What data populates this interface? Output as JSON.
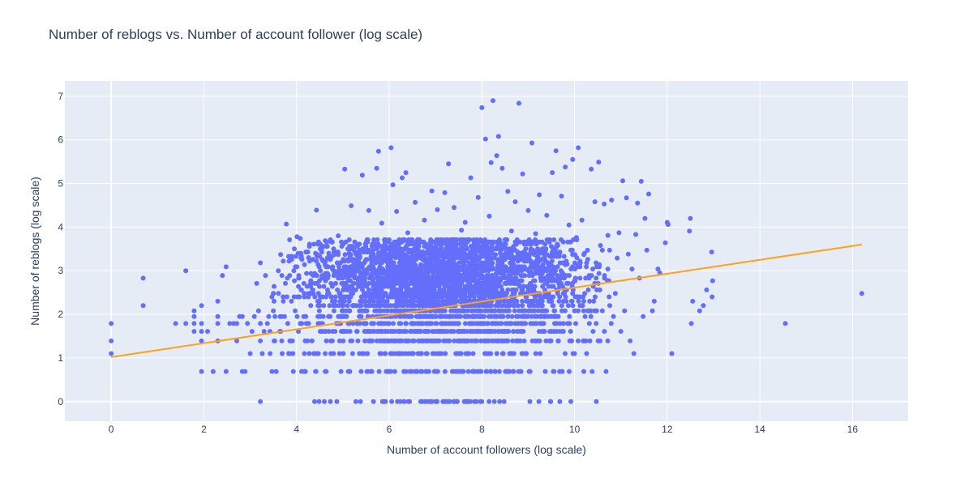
{
  "chart_data": {
    "type": "scatter",
    "title": "Number of reblogs vs. Number of account follower (log scale)",
    "xlabel": "Number of account followers (log scale)",
    "ylabel": "Number of reblogs (log scale)",
    "xlim": [
      -1,
      17.2
    ],
    "ylim": [
      -0.45,
      7.35
    ],
    "xticks": [
      0,
      2,
      4,
      6,
      8,
      10,
      12,
      14,
      16
    ],
    "yticks": [
      0,
      1,
      2,
      3,
      4,
      5,
      6,
      7
    ],
    "grid": true,
    "legend": "none",
    "colors": {
      "points": "#636efa",
      "trendline": "#ffa11b",
      "plot_bg": "#e5ecf6",
      "grid": "#ffffff",
      "text": "#2a3f5f"
    },
    "series": [
      {
        "type": "scatter",
        "points": [
          [
            0,
            1.1
          ],
          [
            0,
            1.39
          ],
          [
            0,
            1.79
          ],
          [
            0.69,
            2.2
          ],
          [
            0.69,
            2.83
          ],
          [
            1.39,
            1.79
          ],
          [
            1.61,
            1.79
          ],
          [
            1.61,
            3.0
          ],
          [
            1.79,
            1.61
          ],
          [
            1.79,
            1.79
          ],
          [
            1.79,
            1.95
          ],
          [
            1.79,
            2.08
          ],
          [
            1.95,
            0.69
          ],
          [
            1.95,
            1.39
          ],
          [
            1.95,
            1.61
          ],
          [
            1.95,
            1.79
          ],
          [
            1.95,
            2.2
          ],
          [
            2.08,
            1.61
          ],
          [
            2.2,
            0.69
          ],
          [
            2.3,
            1.39
          ],
          [
            2.3,
            1.79
          ],
          [
            2.3,
            1.95
          ],
          [
            2.3,
            2.3
          ],
          [
            2.4,
            2.89
          ],
          [
            2.48,
            0.69
          ],
          [
            2.48,
            3.09
          ],
          [
            2.56,
            1.79
          ],
          [
            2.64,
            1.79
          ],
          [
            2.71,
            1.39
          ],
          [
            2.71,
            1.79
          ],
          [
            2.77,
            1.95
          ],
          [
            2.83,
            1.95
          ],
          [
            2.83,
            0.69
          ],
          [
            2.89,
            0.69
          ],
          [
            2.94,
            1.79
          ],
          [
            3.0,
            1.1
          ],
          [
            3.04,
            1.61
          ],
          [
            3.09,
            1.95
          ],
          [
            3.14,
            2.71
          ],
          [
            3.18,
            2.08
          ],
          [
            3.22,
            0
          ],
          [
            3.22,
            1.39
          ],
          [
            3.22,
            1.79
          ],
          [
            3.22,
            3.18
          ],
          [
            3.26,
            1.1
          ],
          [
            3.3,
            1.61
          ],
          [
            3.33,
            2.89
          ],
          [
            3.37,
            1.79
          ],
          [
            3.4,
            1.95
          ],
          [
            3.43,
            1.1
          ],
          [
            3.47,
            0.69
          ],
          [
            3.5,
            2.08
          ],
          [
            3.53,
            1.39
          ],
          [
            3.56,
            0.69
          ],
          [
            3.61,
            2.48
          ],
          [
            3.64,
            1.61
          ],
          [
            3.69,
            1.1
          ],
          [
            3.71,
            2.4
          ],
          [
            3.74,
            1.95
          ],
          [
            3.76,
            2.71
          ],
          [
            3.78,
            4.07
          ],
          [
            3.81,
            1.79
          ],
          [
            3.83,
            3.33
          ],
          [
            3.85,
            1.1
          ],
          [
            3.89,
            2.3
          ],
          [
            3.91,
            1.39
          ],
          [
            3.93,
            0.69
          ],
          [
            3.97,
            2.08
          ],
          [
            4.01,
            3.78
          ],
          [
            4.04,
            1.61
          ],
          [
            4.08,
            3.74
          ],
          [
            4.11,
            0.69
          ],
          [
            4.17,
            1.1
          ],
          [
            4.2,
            1.95
          ],
          [
            4.23,
            2.64
          ],
          [
            4.26,
            1.79
          ],
          [
            4.3,
            2.48
          ],
          [
            4.33,
            1.39
          ],
          [
            4.36,
            2.89
          ],
          [
            4.39,
            0
          ],
          [
            4.41,
            0.69
          ],
          [
            4.43,
            4.39
          ],
          [
            4.47,
            1.1
          ],
          [
            4.5,
            2.2
          ],
          [
            4.53,
            3.5
          ],
          [
            4.56,
            1.79
          ],
          [
            4.6,
            0
          ],
          [
            4.62,
            3.69
          ],
          [
            4.64,
            0.69
          ],
          [
            4.67,
            2.56
          ],
          [
            4.7,
            1.61
          ],
          [
            4.73,
            0
          ],
          [
            4.76,
            3.33
          ],
          [
            4.8,
            1.1
          ],
          [
            4.83,
            2.3
          ],
          [
            4.87,
            0
          ],
          [
            4.9,
            3.8
          ],
          [
            4.93,
            1.39
          ],
          [
            4.96,
            0.69
          ],
          [
            5.0,
            2.08
          ],
          [
            5.04,
            5.33
          ],
          [
            5.08,
            1.95
          ],
          [
            5.11,
            3.26
          ],
          [
            5.15,
            0.69
          ],
          [
            5.18,
            4.49
          ],
          [
            5.21,
            1.1
          ],
          [
            5.25,
            3.04
          ],
          [
            5.28,
            0
          ],
          [
            5.31,
            1.61
          ],
          [
            5.35,
            2.64
          ],
          [
            5.38,
            0
          ],
          [
            5.42,
            5.19
          ],
          [
            5.45,
            1.79
          ],
          [
            5.49,
            2.94
          ],
          [
            5.52,
            0.69
          ],
          [
            5.56,
            4.38
          ],
          [
            5.59,
            1.39
          ],
          [
            5.63,
            3.56
          ],
          [
            5.66,
            0
          ],
          [
            5.7,
            2.2
          ],
          [
            5.73,
            5.35
          ],
          [
            5.77,
            5.74
          ],
          [
            5.8,
            1.1
          ],
          [
            5.84,
            4.09
          ],
          [
            5.88,
            2.83
          ],
          [
            5.92,
            0
          ],
          [
            5.96,
            3.66
          ],
          [
            6.0,
            1.79
          ],
          [
            6.04,
            5.82
          ],
          [
            6.08,
            4.97
          ],
          [
            6.12,
            0.69
          ],
          [
            6.16,
            4.36
          ],
          [
            6.2,
            2.4
          ],
          [
            6.24,
            0
          ],
          [
            6.28,
            5.13
          ],
          [
            6.32,
            1.95
          ],
          [
            6.36,
            5.25
          ],
          [
            6.4,
            3.87
          ],
          [
            6.44,
            0
          ],
          [
            6.48,
            2.77
          ],
          [
            6.52,
            1.1
          ],
          [
            6.56,
            4.57
          ],
          [
            6.6,
            0.69
          ],
          [
            6.64,
            3.43
          ],
          [
            6.68,
            0
          ],
          [
            6.72,
            2.08
          ],
          [
            6.76,
            4.16
          ],
          [
            6.8,
            1.61
          ],
          [
            6.84,
            3.0
          ],
          [
            6.88,
            0
          ],
          [
            6.92,
            4.83
          ],
          [
            6.96,
            2.56
          ],
          [
            7.0,
            0.69
          ],
          [
            7.04,
            4.4
          ],
          [
            7.08,
            1.39
          ],
          [
            7.12,
            3.71
          ],
          [
            7.16,
            0
          ],
          [
            7.2,
            4.79
          ],
          [
            7.24,
            2.2
          ],
          [
            7.28,
            5.45
          ],
          [
            7.32,
            1.79
          ],
          [
            7.36,
            3.22
          ],
          [
            7.4,
            4.45
          ],
          [
            7.44,
            0
          ],
          [
            7.48,
            2.89
          ],
          [
            7.52,
            1.1
          ],
          [
            7.56,
            3.93
          ],
          [
            7.6,
            0.69
          ],
          [
            7.64,
            4.11
          ],
          [
            7.68,
            0
          ],
          [
            7.72,
            2.64
          ],
          [
            7.76,
            5.13
          ],
          [
            7.8,
            1.95
          ],
          [
            7.84,
            3.56
          ],
          [
            7.88,
            0
          ],
          [
            7.92,
            4.68
          ],
          [
            7.96,
            2.3
          ],
          [
            8.0,
            6.74
          ],
          [
            8.04,
            3.17
          ],
          [
            8.08,
            6.02
          ],
          [
            8.12,
            1.61
          ],
          [
            8.16,
            4.25
          ],
          [
            8.2,
            5.48
          ],
          [
            8.24,
            6.9
          ],
          [
            8.28,
            0.69
          ],
          [
            8.32,
            5.64
          ],
          [
            8.36,
            6.08
          ],
          [
            8.4,
            3.64
          ],
          [
            8.44,
            5.35
          ],
          [
            8.48,
            0
          ],
          [
            8.52,
            2.48
          ],
          [
            8.56,
            4.82
          ],
          [
            8.6,
            1.1
          ],
          [
            8.64,
            3.91
          ],
          [
            8.68,
            0.69
          ],
          [
            8.72,
            4.58
          ],
          [
            8.76,
            2.77
          ],
          [
            8.8,
            6.84
          ],
          [
            8.84,
            1.79
          ],
          [
            8.88,
            5.22
          ],
          [
            8.92,
            3.3
          ],
          [
            8.96,
            1.1
          ],
          [
            9.0,
            4.38
          ],
          [
            9.04,
            0.69
          ],
          [
            9.08,
            5.93
          ],
          [
            9.12,
            2.56
          ],
          [
            9.16,
            3.85
          ],
          [
            9.2,
            1.39
          ],
          [
            9.24,
            4.74
          ],
          [
            9.28,
            2.08
          ],
          [
            9.32,
            3.4
          ],
          [
            9.36,
            1.95
          ],
          [
            9.4,
            4.27
          ],
          [
            9.44,
            2.89
          ],
          [
            9.48,
            0
          ],
          [
            9.52,
            5.25
          ],
          [
            9.56,
            0.69
          ],
          [
            9.6,
            5.75
          ],
          [
            9.64,
            3.58
          ],
          [
            9.68,
            1.61
          ],
          [
            9.72,
            4.71
          ],
          [
            9.76,
            2.3
          ],
          [
            9.8,
            5.38
          ],
          [
            9.84,
            3.15
          ],
          [
            9.88,
            4.05
          ],
          [
            9.92,
            0
          ],
          [
            9.96,
            5.55
          ],
          [
            10.0,
            1.1
          ],
          [
            10.04,
            3.76
          ],
          [
            10.08,
            5.82
          ],
          [
            10.12,
            2.2
          ],
          [
            10.16,
            4.16
          ],
          [
            10.2,
            0.69
          ],
          [
            10.24,
            2.83
          ],
          [
            10.28,
            3.47
          ],
          [
            10.32,
            1.79
          ],
          [
            10.36,
            5.33
          ],
          [
            10.4,
            1.61
          ],
          [
            10.44,
            4.58
          ],
          [
            10.48,
            2.56
          ],
          [
            10.52,
            5.49
          ],
          [
            10.56,
            3.58
          ],
          [
            10.6,
            2.08
          ],
          [
            10.64,
            4.53
          ],
          [
            10.68,
            0.69
          ],
          [
            10.72,
            3.81
          ],
          [
            10.76,
            2.2
          ],
          [
            10.8,
            4.62
          ],
          [
            10.84,
            1.95
          ],
          [
            10.88,
            2.48
          ],
          [
            10.92,
            3.29
          ],
          [
            10.96,
            3.87
          ],
          [
            11.0,
            1.61
          ],
          [
            11.04,
            5.06
          ],
          [
            11.08,
            2.08
          ],
          [
            11.12,
            4.67
          ],
          [
            11.16,
            3.38
          ],
          [
            11.2,
            1.39
          ],
          [
            11.24,
            3.04
          ],
          [
            11.28,
            1.1
          ],
          [
            11.32,
            3.83
          ],
          [
            11.36,
            4.55
          ],
          [
            11.4,
            2.83
          ],
          [
            11.44,
            5.05
          ],
          [
            11.48,
            1.95
          ],
          [
            11.52,
            4.2
          ],
          [
            11.56,
            3.47
          ],
          [
            11.6,
            4.76
          ],
          [
            11.68,
            2.08
          ],
          [
            11.72,
            2.3
          ],
          [
            11.8,
            3.04
          ],
          [
            11.84,
            2.95
          ],
          [
            11.96,
            3.64
          ],
          [
            12.0,
            4.11
          ],
          [
            12.02,
            4.06
          ],
          [
            12.1,
            1.1
          ],
          [
            12.48,
            3.91
          ],
          [
            12.5,
            4.2
          ],
          [
            12.52,
            1.79
          ],
          [
            12.55,
            2.3
          ],
          [
            12.7,
            2.08
          ],
          [
            12.78,
            2.2
          ],
          [
            12.85,
            2.56
          ],
          [
            12.96,
            3.43
          ],
          [
            12.97,
            2.4
          ],
          [
            12.98,
            2.77
          ],
          [
            14.55,
            1.79
          ],
          [
            16.2,
            2.48
          ]
        ],
        "dense_band": {
          "x_range": [
            3.5,
            10.0
          ],
          "y_levels": [
            0,
            0.69,
            1.1,
            1.39,
            1.61,
            1.79,
            1.95,
            2.08,
            2.2,
            2.3,
            2.4,
            2.48,
            2.56,
            2.64,
            2.71,
            2.77,
            2.83,
            2.89,
            2.94,
            3.0,
            3.04,
            3.09,
            3.14,
            3.18,
            3.22,
            3.26,
            3.3,
            3.33,
            3.37,
            3.4,
            3.43,
            3.47,
            3.5,
            3.56,
            3.61,
            3.66,
            3.71
          ]
        }
      },
      {
        "type": "line",
        "x": [
          0,
          16.2
        ],
        "y": [
          1.02,
          3.6
        ]
      }
    ]
  }
}
